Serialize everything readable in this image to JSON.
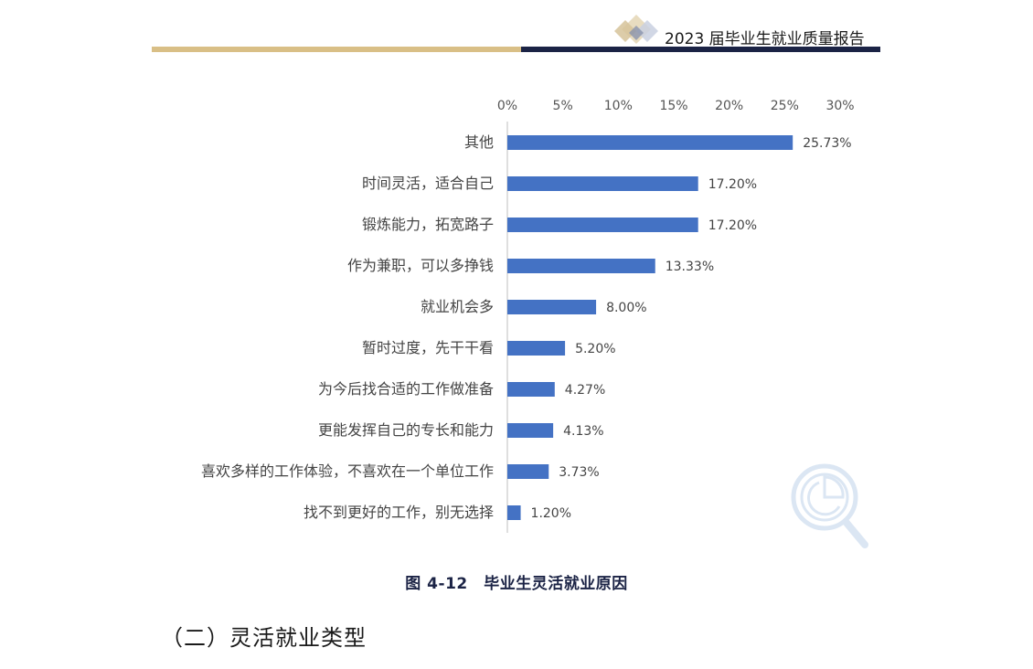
{
  "header": {
    "title": "2023 届毕业生就业质量报告"
  },
  "chart_data": {
    "type": "bar",
    "orientation": "horizontal",
    "title": "",
    "xlabel": "",
    "ylabel": "",
    "xlim": [
      0,
      30
    ],
    "ticks": [
      0,
      5,
      10,
      15,
      20,
      25,
      30
    ],
    "tick_labels": [
      "0%",
      "5%",
      "10%",
      "15%",
      "20%",
      "25%",
      "30%"
    ],
    "axis_position": "top",
    "grid": false,
    "bar_color": "#4472c4",
    "categories": [
      "其他",
      "时间灵活，适合自己",
      "锻炼能力，拓宽路子",
      "作为兼职，可以多挣钱",
      "就业机会多",
      "暂时过度，先干干看",
      "为今后找合适的工作做准备",
      "更能发挥自己的专长和能力",
      "喜欢多样的工作体验，不喜欢在一个单位工作",
      "找不到更好的工作，别无选择"
    ],
    "values": [
      25.73,
      17.2,
      17.2,
      13.33,
      8.0,
      5.2,
      4.27,
      4.13,
      3.73,
      1.2
    ],
    "value_labels": [
      "25.73%",
      "17.20%",
      "17.20%",
      "13.33%",
      "8.00%",
      "5.20%",
      "4.27%",
      "4.13%",
      "3.73%",
      "1.20%"
    ]
  },
  "caption": "图 4-12　毕业生灵活就业原因",
  "section_heading": "（二）灵活就业类型"
}
